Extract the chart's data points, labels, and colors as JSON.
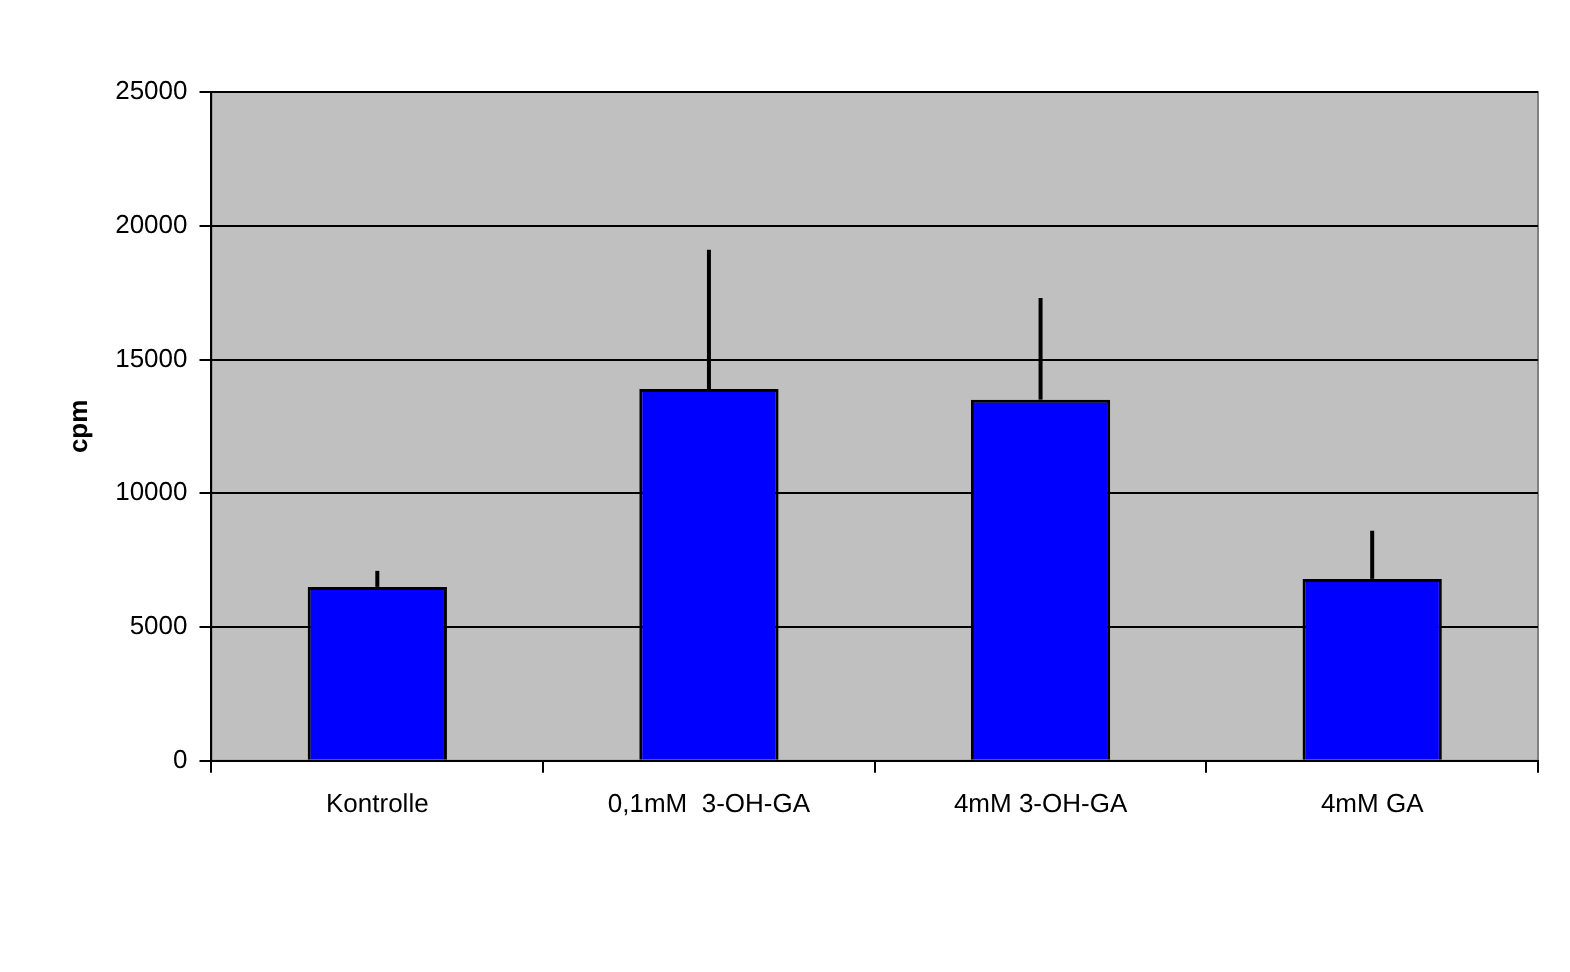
{
  "chart_data": {
    "type": "bar",
    "ylabel": "cpm",
    "categories": [
      "Kontrolle",
      "0,1mM  3-OH-GA",
      "4mM 3-OH-GA",
      "4mM GA"
    ],
    "values": [
      6500,
      13900,
      13500,
      6800
    ],
    "color": "#0000ff",
    "errors": [
      [
        6500,
        7100
      ],
      [
        13900,
        19100
      ],
      [
        13500,
        17300
      ],
      [
        6800,
        8600
      ]
    ],
    "ylim": [
      0,
      25000
    ],
    "yticks": [
      0,
      5000,
      10000,
      15000,
      20000,
      25000
    ],
    "grid": "y",
    "legend": false
  }
}
